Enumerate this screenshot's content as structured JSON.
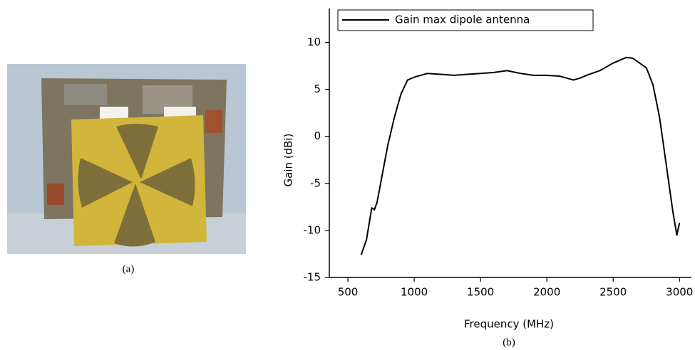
{
  "photo": {
    "caption": "(a)"
  },
  "chart_data": {
    "type": "line",
    "caption": "(b)",
    "x_label": "Frequency (MHz)",
    "y_label": "Gain (dBi)",
    "x": [
      600,
      640,
      680,
      700,
      720,
      760,
      800,
      850,
      900,
      950,
      1000,
      1050,
      1100,
      1200,
      1300,
      1400,
      1500,
      1600,
      1700,
      1800,
      1900,
      2000,
      2100,
      2200,
      2250,
      2300,
      2400,
      2500,
      2600,
      2650,
      2700,
      2750,
      2800,
      2850,
      2900,
      2950,
      2980,
      3000
    ],
    "series": [
      {
        "name": "Gain max dipole antenna",
        "color": "#000000",
        "values": [
          -12.6,
          -11,
          -7.6,
          -7.8,
          -7,
          -4,
          -1,
          2,
          4.5,
          6,
          6.3,
          6.5,
          6.7,
          6.6,
          6.5,
          6.6,
          6.7,
          6.8,
          7,
          6.7,
          6.5,
          6.5,
          6.4,
          6,
          6.2,
          6.5,
          7,
          7.8,
          8.4,
          8.3,
          7.8,
          7.3,
          5.5,
          2,
          -3,
          -8,
          -10.5,
          -9.2
        ]
      }
    ],
    "xlim": [
      360,
      3090
    ],
    "ylim": [
      -15,
      13.6
    ],
    "xticks": [
      500,
      1000,
      1500,
      2000,
      2500,
      3000
    ],
    "yticks": [
      -15,
      -10,
      -5,
      0,
      5,
      10
    ],
    "legend": "upper-left"
  }
}
